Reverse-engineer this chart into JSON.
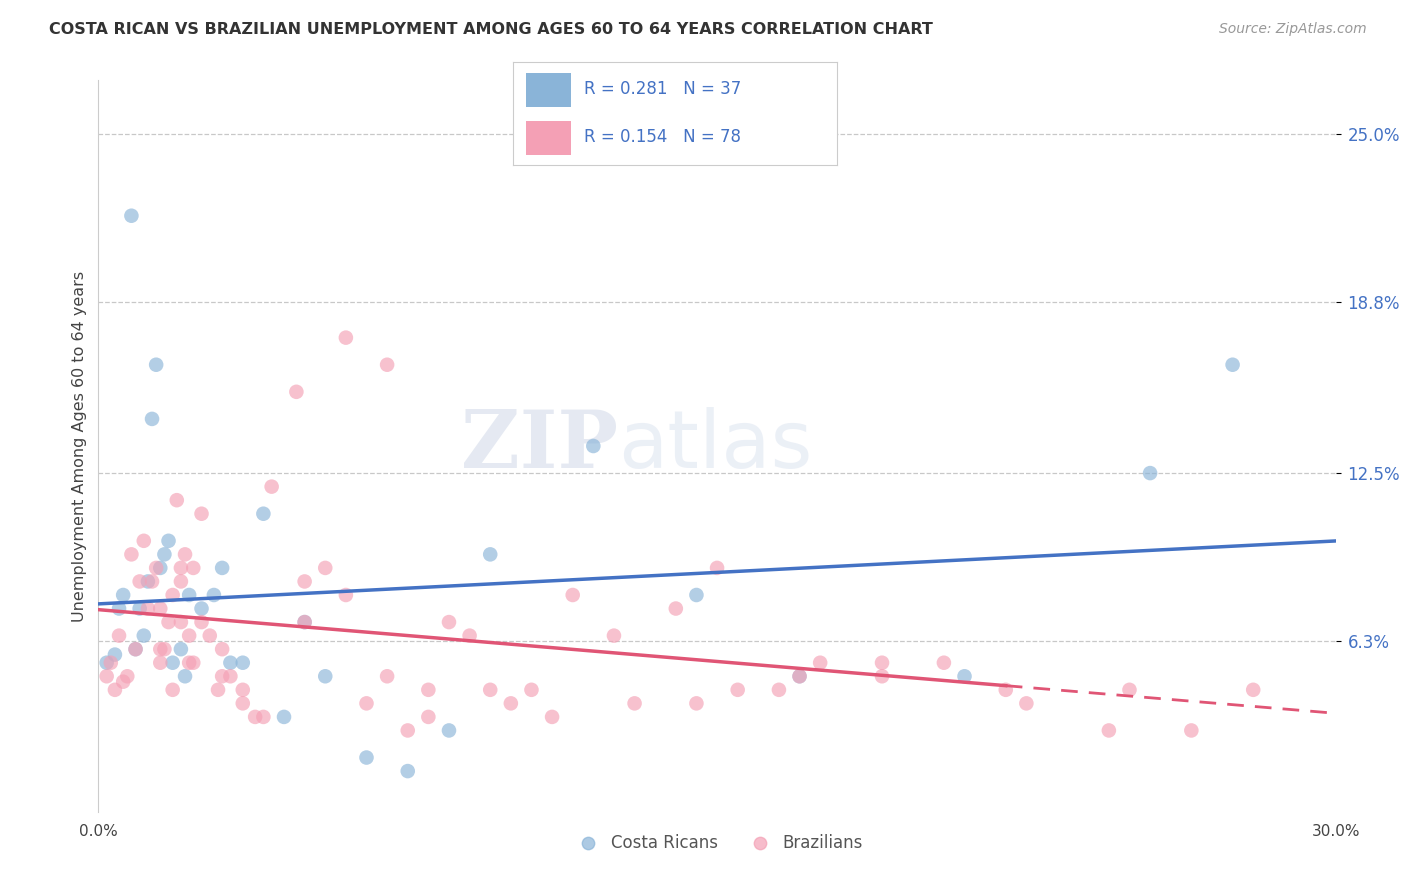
{
  "title": "COSTA RICAN VS BRAZILIAN UNEMPLOYMENT AMONG AGES 60 TO 64 YEARS CORRELATION CHART",
  "source": "Source: ZipAtlas.com",
  "ylabel": "Unemployment Among Ages 60 to 64 years",
  "xlim": [
    0.0,
    30.0
  ],
  "ylim": [
    0.0,
    27.0
  ],
  "ytick_values": [
    6.3,
    12.5,
    18.8,
    25.0
  ],
  "background_color": "#ffffff",
  "costa_rica_color": "#8ab4d8",
  "brazil_color": "#f4a0b5",
  "line_cr_color": "#4472c4",
  "line_br_color": "#e05575",
  "costa_rica_x": [
    0.2,
    0.4,
    0.5,
    0.6,
    0.8,
    0.9,
    1.0,
    1.1,
    1.2,
    1.3,
    1.4,
    1.5,
    1.6,
    1.7,
    1.8,
    2.0,
    2.1,
    2.2,
    2.5,
    2.8,
    3.0,
    3.2,
    3.5,
    4.0,
    4.5,
    5.0,
    5.5,
    6.5,
    7.5,
    8.5,
    9.5,
    12.0,
    14.5,
    17.0,
    21.0,
    25.5,
    27.5
  ],
  "costa_rica_y": [
    5.5,
    5.8,
    7.5,
    8.0,
    22.0,
    6.0,
    7.5,
    6.5,
    8.5,
    14.5,
    16.5,
    9.0,
    9.5,
    10.0,
    5.5,
    6.0,
    5.0,
    8.0,
    7.5,
    8.0,
    9.0,
    5.5,
    5.5,
    11.0,
    3.5,
    7.0,
    5.0,
    2.0,
    1.5,
    3.0,
    9.5,
    13.5,
    8.0,
    5.0,
    5.0,
    12.5,
    16.5
  ],
  "brazil_x": [
    0.2,
    0.3,
    0.4,
    0.5,
    0.6,
    0.7,
    0.8,
    0.9,
    1.0,
    1.1,
    1.2,
    1.3,
    1.4,
    1.5,
    1.6,
    1.7,
    1.8,
    1.9,
    2.0,
    2.1,
    2.2,
    2.3,
    2.5,
    2.7,
    2.9,
    3.2,
    3.5,
    3.8,
    4.2,
    4.8,
    5.0,
    5.5,
    6.0,
    6.5,
    7.0,
    7.5,
    8.0,
    8.5,
    9.5,
    10.5,
    11.5,
    12.5,
    14.0,
    15.0,
    16.5,
    17.5,
    19.0,
    20.5,
    22.5,
    24.5,
    26.5,
    28.0,
    1.5,
    1.5,
    1.8,
    2.0,
    2.0,
    2.2,
    2.3,
    2.5,
    3.0,
    3.0,
    3.5,
    4.0,
    5.0,
    6.0,
    7.0,
    8.0,
    9.0,
    10.0,
    11.0,
    13.0,
    17.0,
    19.0,
    22.0,
    25.0,
    14.5,
    15.5
  ],
  "brazil_y": [
    5.0,
    5.5,
    4.5,
    6.5,
    4.8,
    5.0,
    9.5,
    6.0,
    8.5,
    10.0,
    7.5,
    8.5,
    9.0,
    5.5,
    6.0,
    7.0,
    8.0,
    11.5,
    8.5,
    9.5,
    5.5,
    9.0,
    7.0,
    6.5,
    4.5,
    5.0,
    4.0,
    3.5,
    12.0,
    15.5,
    7.0,
    9.0,
    8.0,
    4.0,
    5.0,
    3.0,
    3.5,
    7.0,
    4.5,
    4.5,
    8.0,
    6.5,
    7.5,
    9.0,
    4.5,
    5.5,
    5.0,
    5.5,
    4.0,
    3.0,
    3.0,
    4.5,
    6.0,
    7.5,
    4.5,
    7.0,
    9.0,
    6.5,
    5.5,
    11.0,
    5.0,
    6.0,
    4.5,
    3.5,
    8.5,
    17.5,
    16.5,
    4.5,
    6.5,
    4.0,
    3.5,
    4.0,
    5.0,
    5.5,
    4.5,
    4.5,
    4.0,
    4.5
  ]
}
